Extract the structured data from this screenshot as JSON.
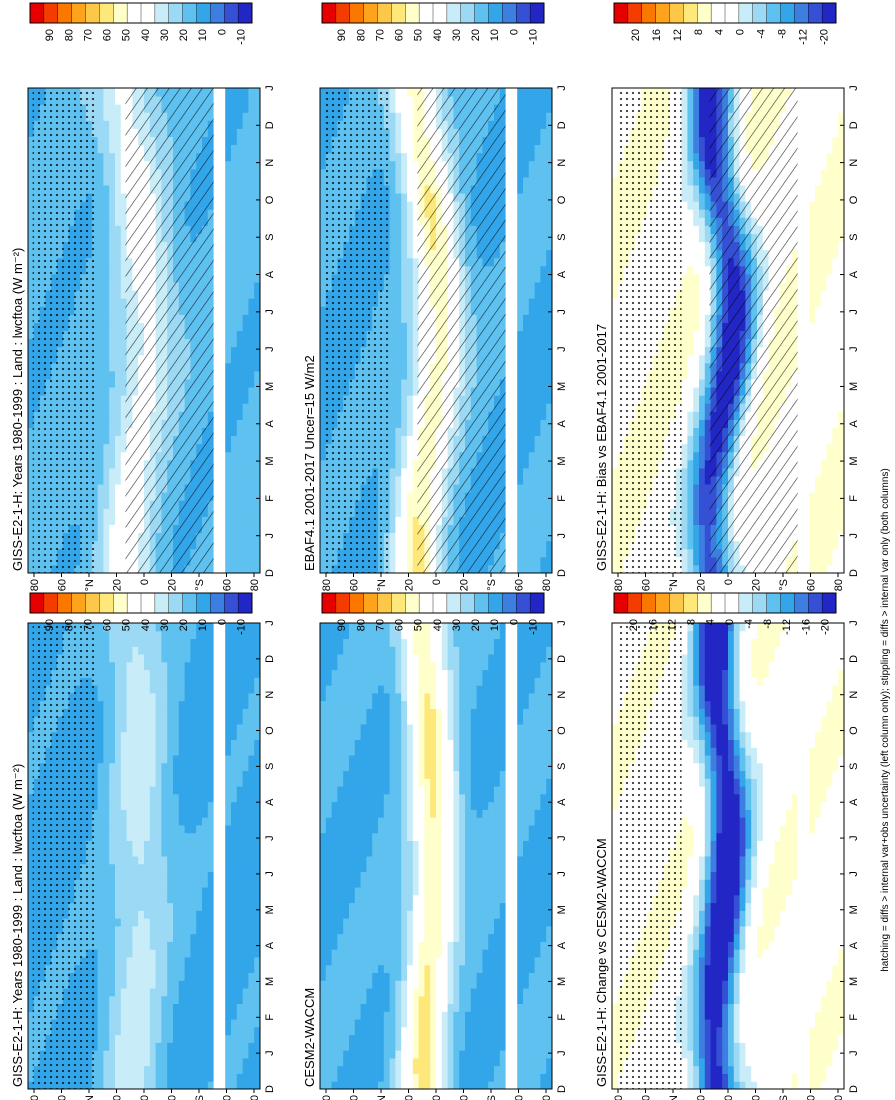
{
  "footer": "hatching = diffs > internal var+obs uncertainty (left column only); stippling = diffs > internal var only (both columns)",
  "colors": {
    "abs_scale": [
      "#e60000",
      "#f43c00",
      "#fb7800",
      "#fda41c",
      "#fdc84a",
      "#fee87a",
      "#ffffcc",
      "#ffffff",
      "#ffffff",
      "#c9edf8",
      "#9bd9f4",
      "#5fc1ef",
      "#33a6ea",
      "#3d7fe0",
      "#3550d4",
      "#2226c4"
    ],
    "diff_scale": [
      "#e60000",
      "#f43c00",
      "#fb7800",
      "#fda41c",
      "#fdc84a",
      "#fee87a",
      "#ffffcc",
      "#ffffff",
      "#ffffff",
      "#c9edf8",
      "#9bd9f4",
      "#5fc1ef",
      "#33a6ea",
      "#3d7fe0",
      "#3550d4",
      "#2226c4"
    ]
  },
  "chart_data": [
    {
      "id": "p11",
      "type": "heatmap",
      "title": "GISS-E2-1-H: Years 1980-1999 : Land : lwcftoa (W m⁻²)",
      "xlabel": "",
      "ylabel": "°N / °S",
      "months": [
        "D",
        "J",
        "F",
        "M",
        "A",
        "M",
        "J",
        "J",
        "A",
        "S",
        "O",
        "N",
        "D",
        "J"
      ],
      "lat_ticks": [
        "80",
        "60",
        "°N",
        "20",
        "0",
        "20",
        "°S",
        "60",
        "80"
      ],
      "colorbar": {
        "labels": [
          "90",
          "80",
          "70",
          "60",
          "50",
          "40",
          "30",
          "20",
          "10",
          "0",
          "-10"
        ]
      },
      "field": {
        "base": 18,
        "band_amp": 22,
        "band_tilt": 0.9,
        "band_width": 14
      },
      "hatching": true,
      "stippling": true
    },
    {
      "id": "p12",
      "type": "heatmap",
      "title": "GISS-E2-1-H: Years 1980-1999 : Land : lwcftoa (W m⁻²)",
      "xlabel": "",
      "ylabel": "°N / °S",
      "months": [
        "D",
        "J",
        "F",
        "M",
        "A",
        "M",
        "J",
        "J",
        "A",
        "S",
        "O",
        "N",
        "D",
        "J"
      ],
      "lat_ticks": [
        "80",
        "60",
        "°N",
        "20",
        "0",
        "20",
        "°S",
        "60",
        "80"
      ],
      "colorbar": {
        "labels": [
          "90",
          "80",
          "70",
          "60",
          "50",
          "40",
          "30",
          "20",
          "10",
          "0",
          "-10"
        ]
      },
      "field": {
        "base": 14,
        "band_amp": 18,
        "band_tilt": 0.4,
        "band_width": 16
      },
      "hatching": false,
      "stippling": true
    },
    {
      "id": "p21",
      "type": "heatmap",
      "title": "EBAF4.1 2001-2017 Uncer=15 W/m2",
      "xlabel": "",
      "ylabel": "°N / °S",
      "months": [
        "D",
        "J",
        "F",
        "M",
        "A",
        "M",
        "J",
        "J",
        "A",
        "S",
        "O",
        "N",
        "D",
        "J"
      ],
      "lat_ticks": [
        "80",
        "60",
        "°N",
        "20",
        "0",
        "20",
        "°S",
        "60",
        "80"
      ],
      "colorbar": {
        "labels": [
          "90",
          "80",
          "70",
          "60",
          "50",
          "40",
          "30",
          "20",
          "10",
          "0",
          "-10"
        ]
      },
      "field": {
        "base": 16,
        "band_amp": 38,
        "band_tilt": 0.9,
        "band_width": 13
      },
      "hatching": true,
      "stippling": true
    },
    {
      "id": "p22",
      "type": "heatmap",
      "title": "CESM2-WACCM",
      "xlabel": "",
      "ylabel": "°N / °S",
      "months": [
        "D",
        "J",
        "F",
        "M",
        "A",
        "M",
        "J",
        "J",
        "A",
        "S",
        "O",
        "N",
        "D",
        "J"
      ],
      "lat_ticks": [
        "80",
        "60",
        "°N",
        "20",
        "0",
        "20",
        "°S",
        "60",
        "80"
      ],
      "colorbar": {
        "labels": [
          "90",
          "80",
          "70",
          "60",
          "50",
          "40",
          "30",
          "20",
          "10",
          "0",
          "-10"
        ]
      },
      "field": {
        "base": 16,
        "band_amp": 40,
        "band_tilt": 0.5,
        "band_width": 12
      },
      "hatching": false,
      "stippling": false
    },
    {
      "id": "p31",
      "type": "heatmap",
      "title": "GISS-E2-1-H: Bias vs EBAF4.1 2001-2017",
      "xlabel": "",
      "ylabel": "°N / °S",
      "months": [
        "D",
        "J",
        "F",
        "M",
        "A",
        "M",
        "J",
        "J",
        "A",
        "S",
        "O",
        "N",
        "D",
        "J"
      ],
      "lat_ticks": [
        "80",
        "60",
        "°N",
        "20",
        "0",
        "20",
        "°S",
        "60",
        "80"
      ],
      "colorbar": {
        "labels": [
          "20",
          "16",
          "12",
          "8",
          "4",
          "0",
          "-4",
          "-8",
          "-12",
          "-20"
        ]
      },
      "field": {
        "base": 2,
        "band_amp": -22,
        "band_tilt": 0.9,
        "band_width": 12
      },
      "hatching": true,
      "stippling": true
    },
    {
      "id": "p32",
      "type": "heatmap",
      "title": "GISS-E2-1-H: Change vs CESM2-WACCM",
      "xlabel": "",
      "ylabel": "°N / °S",
      "months": [
        "D",
        "J",
        "F",
        "M",
        "A",
        "M",
        "J",
        "J",
        "A",
        "S",
        "O",
        "N",
        "D",
        "J"
      ],
      "lat_ticks": [
        "80",
        "60",
        "°N",
        "20",
        "0",
        "20",
        "°S",
        "60",
        "80"
      ],
      "colorbar": {
        "labels": [
          "20",
          "16",
          "12",
          "8",
          "4",
          "0",
          "-4",
          "-8",
          "-12",
          "-16",
          "-20"
        ]
      },
      "field": {
        "base": 1,
        "band_amp": -24,
        "band_tilt": 0.5,
        "band_width": 11
      },
      "hatching": false,
      "stippling": true
    }
  ]
}
